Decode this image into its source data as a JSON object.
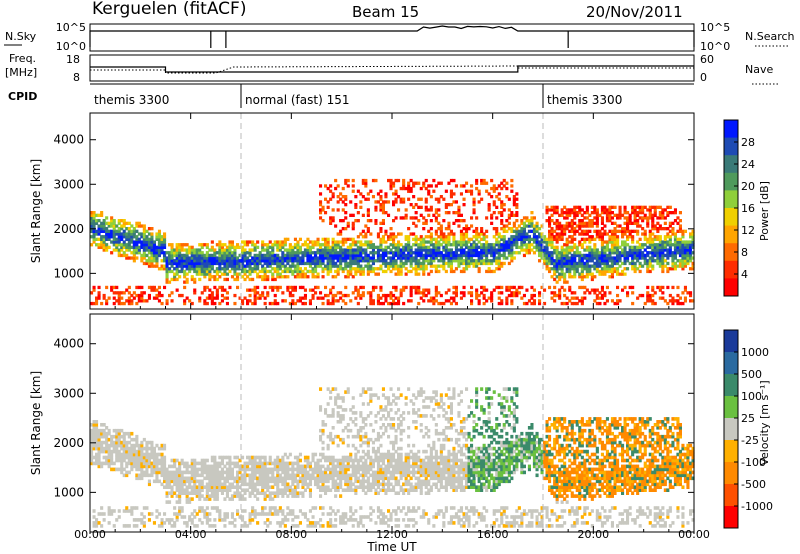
{
  "header": {
    "station": "Kerguelen (fitACF)",
    "beam": "Beam 15",
    "date": "20/Nov/2011"
  },
  "nsky_panel": {
    "left_label": "N.Sky",
    "left_ticks": [
      "10^5",
      "10^0"
    ],
    "right_ticks": [
      "10^5",
      "10^0"
    ],
    "right_label": "N.Search"
  },
  "freq_panel": {
    "left_label_1": "Freq.",
    "left_label_2": "[MHz]",
    "left_ticks": [
      "18",
      "8"
    ],
    "right_ticks": [
      "60",
      "0"
    ],
    "right_label": "Nave"
  },
  "cpid_panel": {
    "label": "CPID",
    "modes": [
      {
        "name": "themis 3300",
        "start_hour": 0
      },
      {
        "name": "normal (fast) 151",
        "start_hour": 6
      },
      {
        "name": "themis 3300",
        "start_hour": 18
      }
    ]
  },
  "chart_data": [
    {
      "type": "heatmap",
      "quantity": "Power",
      "ylabel": "Slant Range [km]",
      "ylim": [
        200,
        4600
      ],
      "yticks": [
        "1000",
        "2000",
        "3000",
        "4000"
      ],
      "xlim_hours": [
        0,
        24
      ],
      "colorbar": {
        "label": "Power [dB]",
        "ticks": [
          "28",
          "24",
          "20",
          "16",
          "12",
          "8",
          "4"
        ],
        "colors": [
          "#0018ff",
          "#1e4bb4",
          "#3a7a78",
          "#4f9a5c",
          "#8fcf3a",
          "#f0d000",
          "#ffa500",
          "#ff6a00",
          "#ff2d00",
          "#ff0000"
        ]
      }
    },
    {
      "type": "heatmap",
      "quantity": "Velocity",
      "ylabel": "Slant Range [km]",
      "ylim": [
        200,
        4600
      ],
      "yticks": [
        "1000",
        "2000",
        "3000",
        "4000"
      ],
      "xlim_hours": [
        0,
        24
      ],
      "colorbar": {
        "label": "Velocity [m s⁻¹]",
        "ticks": [
          "1000",
          "500",
          "100",
          "25",
          "-25",
          "-100",
          "-500",
          "-1000"
        ],
        "colors": [
          "#1a3a9a",
          "#2a6aa0",
          "#3a8a6a",
          "#6ac040",
          "#c8c8c0",
          "#ffb000",
          "#ff8a00",
          "#ff5000",
          "#ff0000"
        ]
      }
    }
  ],
  "x_axis": {
    "title": "Time UT",
    "ticks": [
      "00:00",
      "04:00",
      "08:00",
      "12:00",
      "16:00",
      "20:00",
      "00:00"
    ]
  }
}
